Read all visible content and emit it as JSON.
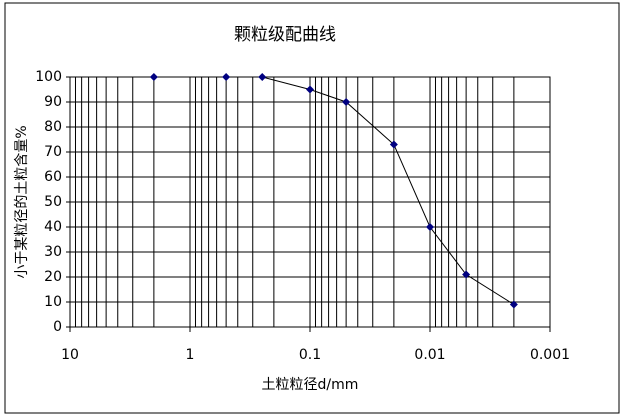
{
  "chart_data": {
    "type": "line",
    "title": "颗粒级配曲线",
    "x_label": "土粒粒径d/mm",
    "y_label": "小于某粒径的土粒含量%",
    "x_scale": "log",
    "xlim": [
      10,
      0.001
    ],
    "xticks": [
      10,
      1,
      0.1,
      0.01,
      0.001
    ],
    "ylim": [
      0,
      100
    ],
    "yticks": [
      0,
      10,
      20,
      30,
      40,
      50,
      60,
      70,
      80,
      90,
      100
    ],
    "grid": true,
    "minor_grid": true,
    "series": [
      {
        "color": "#000080",
        "x": [
          2,
          0.5,
          0.25,
          0.1,
          0.05,
          0.02,
          0.01,
          0.005,
          0.002
        ],
        "values": [
          100,
          100,
          100,
          95,
          90,
          73,
          40,
          21,
          9
        ]
      }
    ]
  }
}
